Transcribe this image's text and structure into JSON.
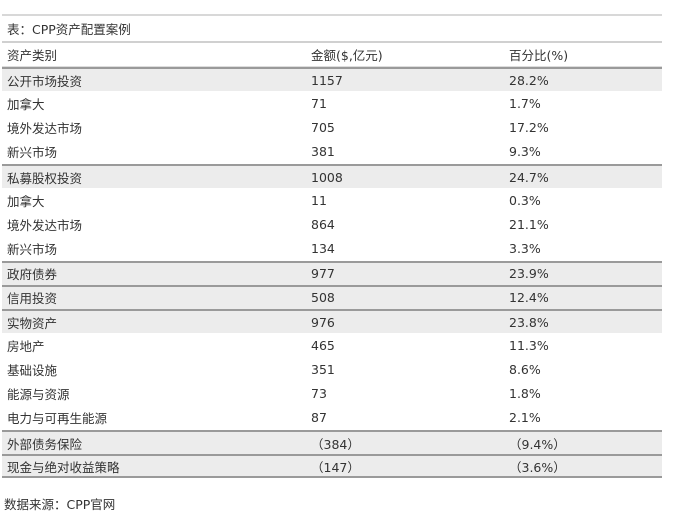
{
  "title": "表：CPP资产配置案例",
  "headers": [
    "资产类别",
    "金额($,亿元)",
    "百分比(%)"
  ],
  "rows": [
    {
      "name": "公开市场投资",
      "amount": "1157",
      "pct": "28.2%",
      "group": true
    },
    {
      "name": "加拿大",
      "amount": "71",
      "pct": "1.7%"
    },
    {
      "name": "境外发达市场",
      "amount": "705",
      "pct": "17.2%"
    },
    {
      "name": "新兴市场",
      "amount": "381",
      "pct": "9.3%"
    },
    {
      "name": "私募股权投资",
      "amount": "1008",
      "pct": "24.7%",
      "group": true
    },
    {
      "name": "加拿大",
      "amount": "11",
      "pct": "0.3%"
    },
    {
      "name": "境外发达市场",
      "amount": "864",
      "pct": "21.1%"
    },
    {
      "name": "新兴市场",
      "amount": "134",
      "pct": "3.3%"
    },
    {
      "name": "政府债券",
      "amount": "977",
      "pct": "23.9%",
      "group": true
    },
    {
      "name": "信用投资",
      "amount": "508",
      "pct": "12.4%",
      "group": true
    },
    {
      "name": "实物资产",
      "amount": "976",
      "pct": "23.8%",
      "group": true
    },
    {
      "name": "房地产",
      "amount": "465",
      "pct": "11.3%"
    },
    {
      "name": "基础设施",
      "amount": "351",
      "pct": "8.6%"
    },
    {
      "name": "能源与资源",
      "amount": "73",
      "pct": "1.8%"
    },
    {
      "name": "电力与可再生能源",
      "amount": "87",
      "pct": "2.1%"
    },
    {
      "name": "外部债务保险",
      "amount": "（384）",
      "pct": "（9.4%）",
      "group": true
    },
    {
      "name": "现金与绝对收益策略",
      "amount": "（147）",
      "pct": "（3.6%）",
      "group": true
    }
  ],
  "source": "数据来源：CPP官网"
}
